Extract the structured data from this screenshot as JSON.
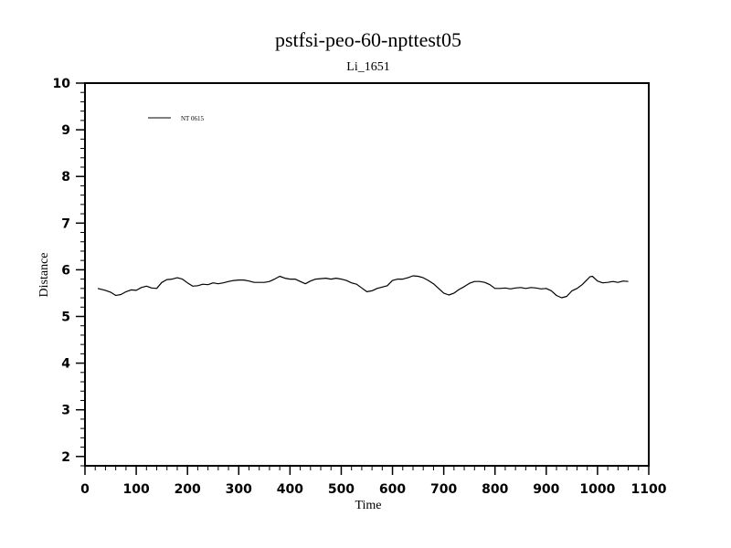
{
  "chart_data": {
    "type": "line",
    "title": "pstfsi-peo-60-npttest05",
    "subtitle": "Li_1651",
    "xlabel": "Time",
    "ylabel": "Distance",
    "xlim": [
      0,
      1100
    ],
    "ylim": [
      1.8,
      10
    ],
    "xticks": [
      "0",
      "100",
      "200",
      "300",
      "400",
      "500",
      "600",
      "700",
      "800",
      "900",
      "1000",
      "1100"
    ],
    "yticks": [
      "2",
      "3",
      "4",
      "5",
      "6",
      "7",
      "8",
      "9",
      "10"
    ],
    "grid": false,
    "legend_position": "top-left",
    "series": [
      {
        "name": "NT 0615",
        "color": "#000000",
        "x": [
          25,
          40,
          50,
          60,
          70,
          80,
          90,
          100,
          110,
          120,
          130,
          140,
          150,
          160,
          170,
          180,
          190,
          200,
          210,
          220,
          230,
          240,
          250,
          260,
          270,
          280,
          290,
          300,
          310,
          320,
          330,
          340,
          350,
          360,
          370,
          380,
          390,
          400,
          410,
          420,
          430,
          440,
          450,
          460,
          470,
          480,
          490,
          500,
          510,
          520,
          530,
          540,
          550,
          560,
          570,
          580,
          590,
          600,
          610,
          620,
          630,
          640,
          650,
          660,
          670,
          680,
          690,
          700,
          710,
          720,
          730,
          740,
          750,
          760,
          770,
          780,
          790,
          800,
          810,
          820,
          830,
          840,
          850,
          860,
          870,
          880,
          890,
          900,
          910,
          920,
          930,
          940,
          950,
          960,
          970,
          980,
          985,
          990,
          1000,
          1010,
          1020,
          1030,
          1040,
          1050,
          1060
        ],
        "y": [
          5.6,
          5.56,
          5.52,
          5.45,
          5.47,
          5.53,
          5.57,
          5.56,
          5.62,
          5.65,
          5.61,
          5.6,
          5.73,
          5.79,
          5.8,
          5.83,
          5.8,
          5.72,
          5.65,
          5.66,
          5.69,
          5.68,
          5.72,
          5.7,
          5.72,
          5.75,
          5.77,
          5.78,
          5.78,
          5.76,
          5.73,
          5.73,
          5.73,
          5.75,
          5.8,
          5.86,
          5.82,
          5.8,
          5.8,
          5.75,
          5.7,
          5.76,
          5.8,
          5.81,
          5.82,
          5.8,
          5.82,
          5.8,
          5.77,
          5.72,
          5.69,
          5.61,
          5.53,
          5.55,
          5.6,
          5.63,
          5.66,
          5.77,
          5.8,
          5.8,
          5.83,
          5.87,
          5.86,
          5.83,
          5.77,
          5.7,
          5.6,
          5.5,
          5.46,
          5.5,
          5.58,
          5.64,
          5.71,
          5.75,
          5.75,
          5.73,
          5.68,
          5.6,
          5.6,
          5.61,
          5.59,
          5.61,
          5.62,
          5.6,
          5.62,
          5.61,
          5.59,
          5.6,
          5.55,
          5.45,
          5.4,
          5.43,
          5.55,
          5.6,
          5.68,
          5.79,
          5.85,
          5.86,
          5.76,
          5.72,
          5.73,
          5.75,
          5.73,
          5.76,
          5.75
        ]
      }
    ]
  }
}
